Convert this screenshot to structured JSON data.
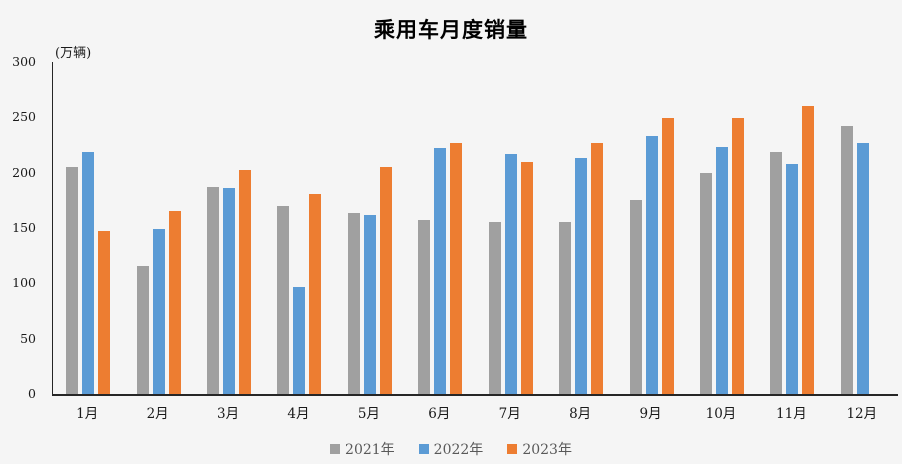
{
  "chart_data": {
    "type": "bar",
    "title": "乘用车月度销量",
    "unit_label": "(万辆)",
    "categories": [
      "1月",
      "2月",
      "3月",
      "4月",
      "5月",
      "6月",
      "7月",
      "8月",
      "9月",
      "10月",
      "11月",
      "12月"
    ],
    "series": [
      {
        "name": "2021年",
        "color": "#a0a0a0",
        "values": [
          205,
          116,
          187,
          170,
          164,
          157,
          155,
          155,
          175,
          200,
          219,
          242
        ]
      },
      {
        "name": "2022年",
        "color": "#5b9bd5",
        "values": [
          219,
          149,
          186,
          97,
          162,
          222,
          217,
          213,
          233,
          223,
          208,
          227
        ]
      },
      {
        "name": "2023年",
        "color": "#ed7d31",
        "values": [
          147,
          165,
          202,
          181,
          205,
          227,
          210,
          227,
          249,
          249,
          260,
          null
        ]
      }
    ],
    "ylim": [
      0,
      300
    ],
    "y_ticks": [
      0,
      50,
      100,
      150,
      200,
      250,
      300
    ],
    "grid": false,
    "legend_position": "bottom",
    "xlabel": "",
    "ylabel": "万辆"
  },
  "colors": {
    "background": "#f5f5f5",
    "axis_line": "#262626",
    "tick_text": "#1a1a1a",
    "legend_text": "#595959"
  }
}
